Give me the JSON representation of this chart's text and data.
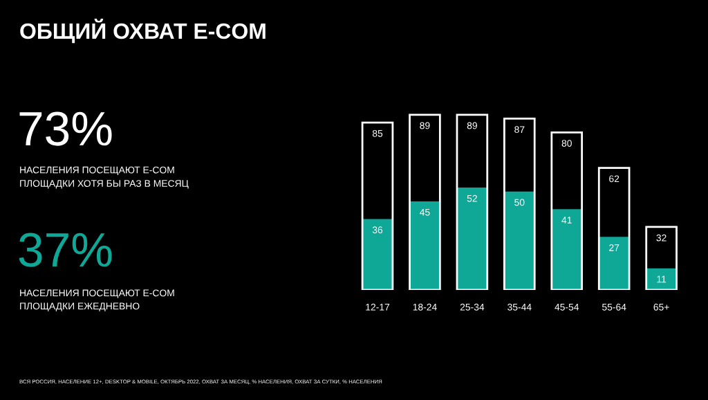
{
  "chart_data": [
    {
      "type": "other",
      "title": "ОБЩИЙ ОХВАТ E-COM",
      "annotations": [
        "73%",
        "НАСЕЛЕНИЯ ПОСЕЩАЮТ E-COM\nПЛОЩАДКИ ХОТЯ БЫ РАЗ В МЕСЯЦ",
        "37%",
        "НАСЕЛЕНИЯ ПОСЕЩАЮТ E-COM\nПЛОЩАДКИ ЕЖЕДНЕВНО",
        "ВСЯ РОССИЯ, НАСЕЛЕНИЕ 12+, DESKTOP & MOBILE, ОКТЯБРЬ 2022, ОХВАТ ЗА МЕСЯЦ, % НАСЕЛЕНИЯ, ОХВАТ ЗА СУТКИ, % НАСЕЛЕНИЯ"
      ]
    },
    {
      "type": "bar",
      "categories": [
        "12-17",
        "18-24",
        "25-34",
        "35-44",
        "45-54",
        "55-64",
        "65+"
      ],
      "series": [
        {
          "color": "#ffffff",
          "values": [
            85,
            89,
            89,
            87,
            80,
            62,
            32
          ]
        },
        {
          "color": "#0fa897",
          "values": [
            36,
            45,
            52,
            50,
            41,
            27,
            11
          ]
        }
      ],
      "tick_labels": "x",
      "data_labels": true
    }
  ]
}
